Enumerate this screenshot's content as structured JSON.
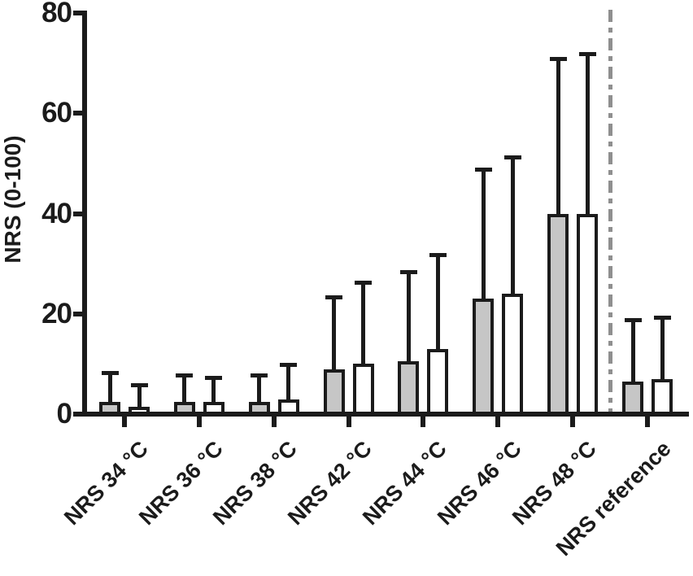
{
  "figure_title": "",
  "colors": {
    "axis": "#1b1b1b",
    "bar_outline": "#1b1b1b",
    "gray_bar_fill": "#c6c6c6",
    "white_bar_fill": "#ffffff",
    "separator_line": "#8f8f8f",
    "background": "#ffffff"
  },
  "chart_data": {
    "type": "bar",
    "title": "",
    "xlabel": "",
    "ylabel": "NRS (0-100)",
    "ylim": [
      0,
      80
    ],
    "yticks": [
      0,
      20,
      40,
      60,
      80
    ],
    "grid": false,
    "legend": "none",
    "error_bars": "upper whiskers only (mean + SD)",
    "categories": [
      "NRS 34 °C",
      "NRS 36 °C",
      "NRS 38 °C",
      "NRS 42 °C",
      "NRS 44 °C",
      "NRS 46 °C",
      "NRS 48 °C",
      "NRS reference"
    ],
    "series": [
      {
        "name": "left gray bars",
        "fill": "#c6c6c6",
        "values": [
          2.5,
          2.5,
          2.5,
          9,
          10.5,
          23,
          40,
          6.5
        ],
        "whisker_tops": [
          8.5,
          8,
          8,
          23.5,
          28.5,
          49,
          71,
          19
        ]
      },
      {
        "name": "right white bars",
        "fill": "#ffffff",
        "values": [
          1.5,
          2.5,
          3,
          10,
          13,
          24,
          40,
          7
        ],
        "whisker_tops": [
          6,
          7.5,
          10,
          26.5,
          32,
          51.5,
          72,
          19.5
        ]
      }
    ],
    "separator": {
      "style": "vertical dash-dot line",
      "color": "#8f8f8f",
      "between_categories": [
        "NRS 48 °C",
        "NRS reference"
      ]
    }
  }
}
